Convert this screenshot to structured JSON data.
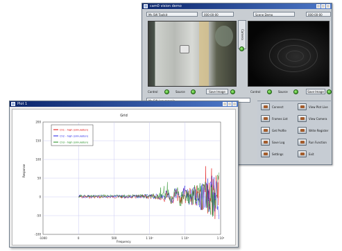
{
  "back_window": {
    "title": "cam0 vision demo",
    "pane_left_label": "Ms SW Toolkit",
    "pane_left_value": "000-00-00",
    "pane_right_label": "Scene Demo",
    "pane_right_value": "000-00-00",
    "side_tab": "Camera",
    "left_controls": [
      "Control",
      "Source",
      "Save Image"
    ],
    "right_controls": [
      "Control",
      "Source",
      "Save Image"
    ],
    "log_header": "Ms SW Log console",
    "commands_left": [
      "Connect",
      "Frames List",
      "Get Profile",
      "Save Log",
      "Settings"
    ],
    "commands_right": [
      "View Plot Live",
      "View Camera",
      "Write Register",
      "Run Function",
      "Exit"
    ]
  },
  "front_window": {
    "title": "Plot 1",
    "plot_title": "Grid",
    "y_label": "Response",
    "x_label": "Frequency",
    "legend": [
      {
        "label": "Ch1 - high (simulation)",
        "color": "#e00000"
      },
      {
        "label": "Ch2 - high (simulation)",
        "color": "#1a1ae6"
      },
      {
        "label": "Ch3 - high (simulation)",
        "color": "#1a8a1a"
      }
    ],
    "y_ticks": [
      "200",
      "150",
      "100",
      "50",
      "0",
      "-50",
      "-100"
    ],
    "x_ticks": [
      "-1000",
      "0",
      "500",
      "1 10²",
      "1 10³",
      "1 10⁴"
    ]
  }
}
